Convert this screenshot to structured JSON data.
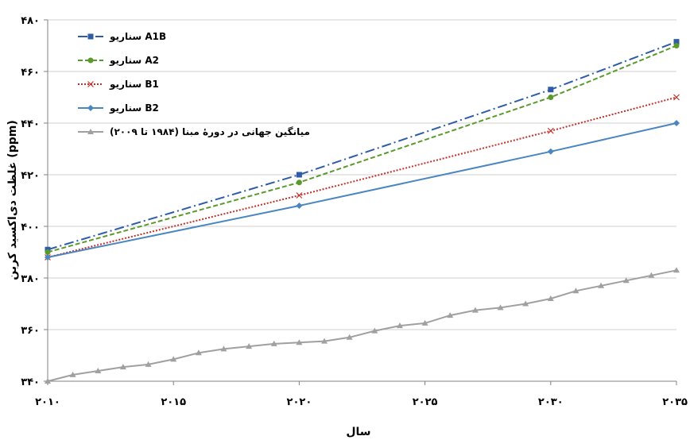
{
  "chart_data": {
    "type": "line",
    "title": "",
    "xlabel": "سال",
    "ylabel": "غلظت دی‌اکسید کربن (ppm)",
    "xlim": [
      2010,
      2035
    ],
    "ylim": [
      340,
      480
    ],
    "x_ticks": [
      2010,
      2015,
      2020,
      2025,
      2030,
      2035
    ],
    "x_tick_labels": [
      "۲۰۱۰",
      "۲۰۱۵",
      "۲۰۲۰",
      "۲۰۲۵",
      "۲۰۳۰",
      "۲۰۳۵"
    ],
    "y_ticks": [
      340,
      360,
      380,
      400,
      420,
      440,
      460,
      480
    ],
    "y_tick_labels": [
      "۳۴۰",
      "۳۶۰",
      "۳۸۰",
      "۴۰۰",
      "۴۲۰",
      "۴۴۰",
      "۴۶۰",
      "۴۸۰"
    ],
    "grid": "horizontal",
    "legend_position": "top-left",
    "series": [
      {
        "name": "سناریو A1B",
        "color": "#2e5ca8",
        "dash": "dashdot",
        "marker": "square",
        "x": [
          2010,
          2020,
          2030,
          2035
        ],
        "y": [
          391,
          420,
          453,
          471.5
        ]
      },
      {
        "name": "سناریو A2",
        "color": "#5a9a2a",
        "dash": "dashed",
        "marker": "circle",
        "x": [
          2010,
          2020,
          2030,
          2035
        ],
        "y": [
          390,
          417,
          450,
          470
        ]
      },
      {
        "name": "سناریو B1",
        "color": "#c0302a",
        "dash": "dotted",
        "marker": "x",
        "x": [
          2010,
          2020,
          2030,
          2035
        ],
        "y": [
          388,
          412,
          437,
          450
        ]
      },
      {
        "name": "سناریو B2",
        "color": "#4a86c0",
        "dash": "solid",
        "marker": "diamond",
        "x": [
          2010,
          2020,
          2030,
          2035
        ],
        "y": [
          388,
          408,
          429,
          440
        ]
      },
      {
        "name": "میانگین جهانی در دورهٔ مبنا (۱۹۸۴ تا ۲۰۰۹)",
        "color": "#a0a0a0",
        "dash": "solid",
        "marker": "triangle",
        "x": [
          2010,
          2011,
          2012,
          2013,
          2014,
          2015,
          2016,
          2017,
          2018,
          2019,
          2020,
          2021,
          2022,
          2023,
          2024,
          2025,
          2026,
          2027,
          2028,
          2029,
          2030,
          2031,
          2032,
          2033,
          2034,
          2035
        ],
        "y": [
          340,
          342.5,
          344,
          345.5,
          346.5,
          348.5,
          351,
          352.5,
          353.5,
          354.5,
          355,
          355.5,
          357,
          359.5,
          361.5,
          362.5,
          365.5,
          367.5,
          368.5,
          370,
          372,
          375,
          377,
          379,
          381,
          383
        ]
      }
    ]
  }
}
